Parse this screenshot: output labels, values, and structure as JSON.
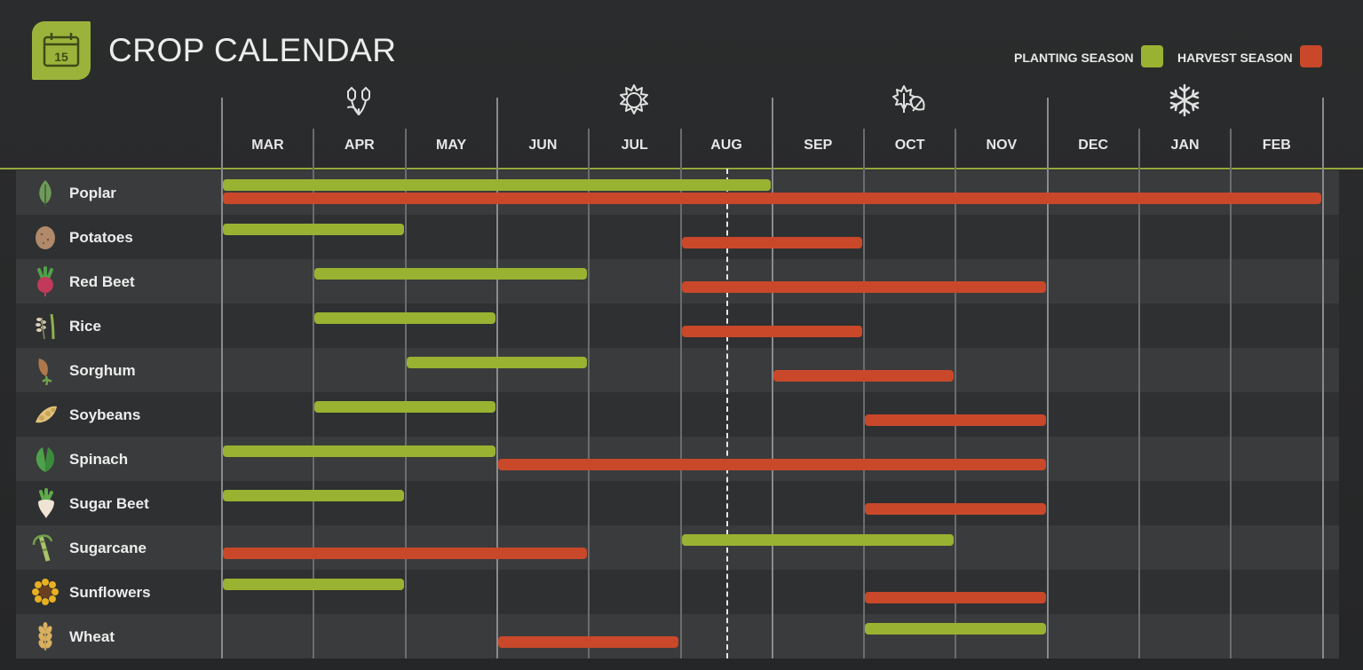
{
  "header": {
    "title": "CROP CALENDAR",
    "calendar_icon_number": "15"
  },
  "legend": {
    "planting_label": "PLANTING SEASON",
    "harvest_label": "HARVEST SEASON",
    "planting_color": "#99b232",
    "harvest_color": "#c9482a"
  },
  "season_icons": [
    "spring-flower-icon",
    "summer-sun-icon",
    "autumn-leaf-icon",
    "winter-snowflake-icon"
  ],
  "months": [
    "MAR",
    "APR",
    "MAY",
    "JUN",
    "JUL",
    "AUG",
    "SEP",
    "OCT",
    "NOV",
    "DEC",
    "JAN",
    "FEB"
  ],
  "current_month_marker": "AUG",
  "crops": [
    {
      "name": "Poplar",
      "icon": "poplar-leaf-icon",
      "planting": [
        "MAR",
        "AUG"
      ],
      "harvest": [
        "MAR",
        "FEB"
      ]
    },
    {
      "name": "Potatoes",
      "icon": "potato-icon",
      "planting": [
        "MAR",
        "APR"
      ],
      "harvest": [
        "AUG",
        "SEP"
      ]
    },
    {
      "name": "Red Beet",
      "icon": "red-beet-icon",
      "planting": [
        "APR",
        "JUN"
      ],
      "harvest": [
        "AUG",
        "NOV"
      ]
    },
    {
      "name": "Rice",
      "icon": "rice-icon",
      "planting": [
        "APR",
        "MAY"
      ],
      "harvest": [
        "AUG",
        "SEP"
      ]
    },
    {
      "name": "Sorghum",
      "icon": "sorghum-icon",
      "planting": [
        "MAY",
        "JUN"
      ],
      "harvest": [
        "SEP",
        "OCT"
      ]
    },
    {
      "name": "Soybeans",
      "icon": "soybean-icon",
      "planting": [
        "APR",
        "MAY"
      ],
      "harvest": [
        "OCT",
        "NOV"
      ]
    },
    {
      "name": "Spinach",
      "icon": "spinach-icon",
      "planting": [
        "MAR",
        "MAY"
      ],
      "harvest": [
        "JUN",
        "NOV"
      ]
    },
    {
      "name": "Sugar Beet",
      "icon": "sugar-beet-icon",
      "planting": [
        "MAR",
        "APR"
      ],
      "harvest": [
        "OCT",
        "NOV"
      ]
    },
    {
      "name": "Sugarcane",
      "icon": "sugarcane-icon",
      "planting": [
        "AUG",
        "OCT"
      ],
      "harvest": [
        "MAR",
        "JUN"
      ]
    },
    {
      "name": "Sunflowers",
      "icon": "sunflower-icon",
      "planting": [
        "MAR",
        "APR"
      ],
      "harvest": [
        "OCT",
        "NOV"
      ]
    },
    {
      "name": "Wheat",
      "icon": "wheat-icon",
      "planting": [
        "OCT",
        "NOV"
      ],
      "harvest": [
        "JUN",
        "JUL"
      ]
    }
  ]
}
